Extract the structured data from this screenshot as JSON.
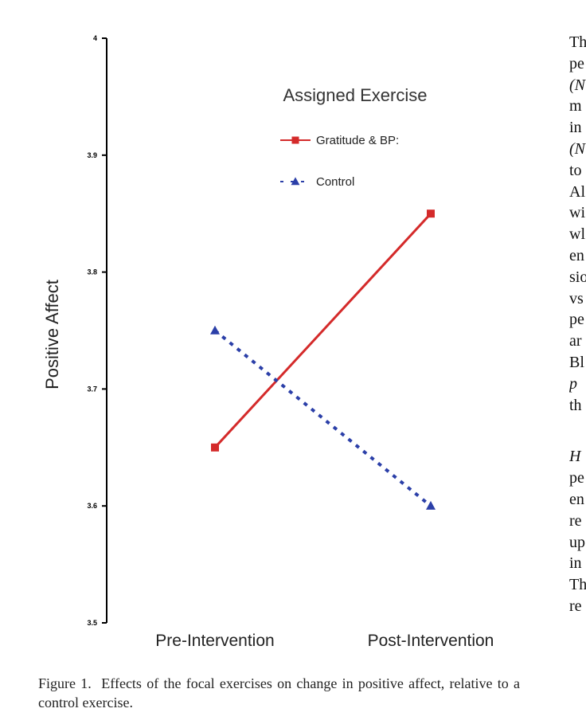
{
  "chart_data": {
    "type": "line",
    "categories": [
      "Pre-Intervention",
      "Post-Intervention"
    ],
    "series": [
      {
        "name": "Gratitude & BP:",
        "values": [
          3.65,
          3.85
        ],
        "color": "#d42a2a",
        "marker": "square",
        "line_style": "solid"
      },
      {
        "name": "Control",
        "values": [
          3.75,
          3.6
        ],
        "color": "#2b3fa8",
        "marker": "triangle",
        "line_style": "dotted"
      }
    ],
    "title": "",
    "xlabel": "",
    "ylabel": "Positive Affect",
    "ylim": [
      3.5,
      4.0
    ],
    "yticks": [
      3.5,
      3.6,
      3.7,
      3.8,
      3.9,
      4.0
    ],
    "ytick_labels": [
      "3.5",
      "3.6",
      "3.7",
      "3.8",
      "3.9",
      "4"
    ],
    "legend_title": "Assigned Exercise",
    "legend_position": "top-right",
    "grid": false
  },
  "caption": {
    "label": "Figure 1.",
    "text": "Effects of the focal exercises on change in positive affect, relative to a control exercise."
  },
  "side_text": [
    "Th",
    "pe",
    "(N",
    "m",
    "in",
    "(N",
    "to",
    "Al",
    "wi",
    "wl",
    "en",
    "sio",
    "vs",
    "pe",
    "ar",
    "Bl",
    "p",
    "th",
    "H",
    "pe",
    "en",
    "re",
    "up",
    "in",
    "Th",
    "re"
  ]
}
